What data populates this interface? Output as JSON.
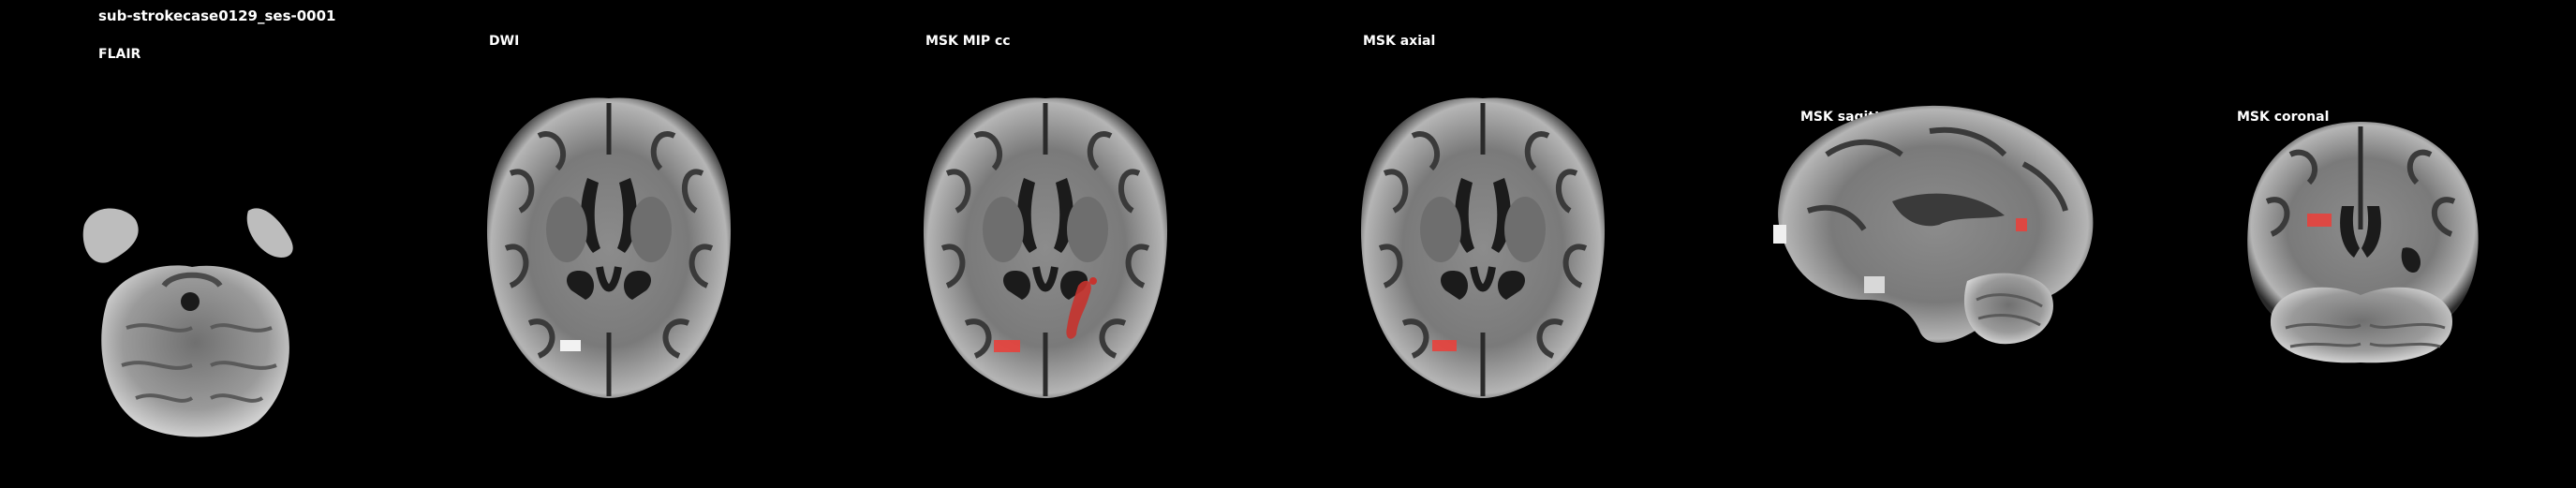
{
  "figure": {
    "subject_title": "sub-strokecase0129_ses-0001",
    "panels": [
      {
        "id": "flair",
        "label": "FLAIR"
      },
      {
        "id": "dwi",
        "label": "DWI"
      },
      {
        "id": "msk-mip",
        "label": "MSK MIP cc"
      },
      {
        "id": "msk-axial",
        "label": "MSK axial"
      },
      {
        "id": "msk-sagittal",
        "label": "MSK sagittal"
      },
      {
        "id": "msk-coronal",
        "label": "MSK coronal"
      }
    ]
  },
  "colors": {
    "background": "#000000",
    "label_text": "#ffffff",
    "lesion_overlay": "#e8413c",
    "brain_gray": "#8a8a8a"
  }
}
